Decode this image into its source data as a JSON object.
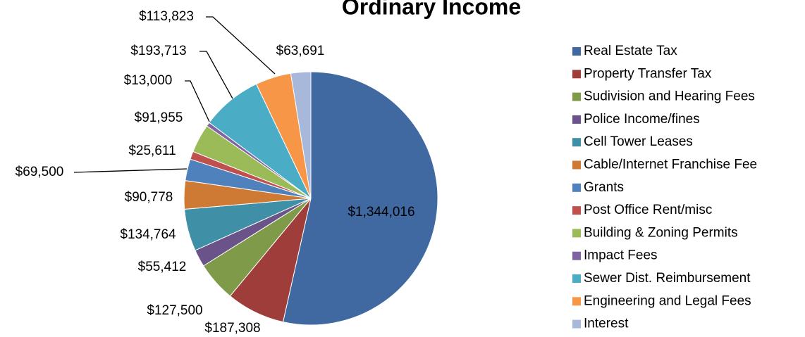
{
  "chart_data": {
    "type": "pie",
    "title": "Ordinary Income",
    "categories": [
      "Real Estate Tax",
      "Property Transfer Tax",
      "Sudivision and Hearing Fees",
      "Police Income/fines",
      "Cell Tower Leases",
      "Cable/Internet Franchise Fee",
      "Grants",
      "Post Office Rent/misc",
      "Building & Zoning Permits",
      "Impact Fees",
      "Sewer Dist. Reimbursement",
      "Engineering and Legal Fees",
      "Interest"
    ],
    "values": [
      1344016,
      187308,
      127500,
      55412,
      134764,
      90778,
      69500,
      25611,
      91955,
      13000,
      193713,
      113823,
      63691
    ],
    "value_labels": [
      "$1,344,016",
      "$187,308",
      "$127,500",
      "$55,412",
      "$134,764",
      "$90,778",
      "$69,500",
      "$25,611",
      "$91,955",
      "$13,000",
      "$193,713",
      "$113,823",
      "$63,691"
    ],
    "colors": [
      "#3F69A0",
      "#9E3D3A",
      "#7F9A48",
      "#6A5389",
      "#3F8FA6",
      "#CF7A34",
      "#4F81BD",
      "#C0504D",
      "#9BBB59",
      "#8064A2",
      "#4BACC6",
      "#F79646",
      "#A8B8DA"
    ],
    "legend": "right"
  }
}
